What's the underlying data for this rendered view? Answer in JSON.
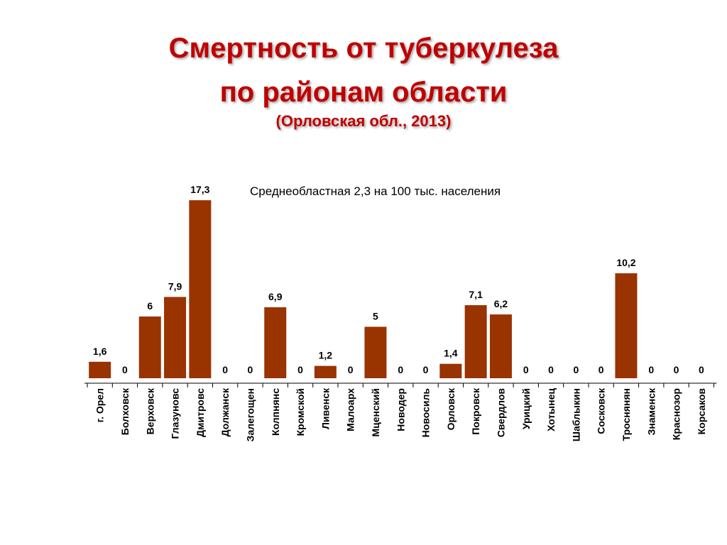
{
  "title_line1": "Смертность от туберкулеза",
  "title_line2": "по районам области",
  "subtitle": "(Орловская обл., 2013)",
  "colors": {
    "title": "#c00000",
    "bar": "#993300"
  },
  "chart_data": {
    "type": "bar",
    "annotation": "Среднеобластная 2,3 на 100 тыс. населения",
    "categories": [
      "г. Орел",
      "Болховск",
      "Верховск",
      "Глазуновс",
      "Дмитровс",
      "Должанск",
      "Залегощен",
      "Колпнянс",
      "Кромской",
      "Ливенск",
      "Малоарх",
      "Мценский",
      "Новодер",
      "Новосиль",
      "Орловск",
      "Покровск",
      "Свердлов",
      "Урицкий",
      "Хотынец",
      "Шаблыкин",
      "Сосковск",
      "Троснянян",
      "Знаменск",
      "Краснозор",
      "Корсаков"
    ],
    "values": [
      1.6,
      0,
      6,
      7.9,
      17.3,
      0,
      0,
      6.9,
      0,
      1.2,
      0,
      5,
      0,
      0,
      1.4,
      7.1,
      6.2,
      0,
      0,
      0,
      0,
      10.2,
      0,
      0,
      0
    ],
    "labels": [
      "1,6",
      "0",
      "6",
      "7,9",
      "17,3",
      "0",
      "0",
      "6,9",
      "0",
      "1,2",
      "0",
      "5",
      "0",
      "0",
      "1,4",
      "7,1",
      "6,2",
      "0",
      "0",
      "0",
      "0",
      "10,2",
      "0",
      "0",
      "0"
    ],
    "xlabel": "",
    "ylabel": "",
    "grid": false
  }
}
